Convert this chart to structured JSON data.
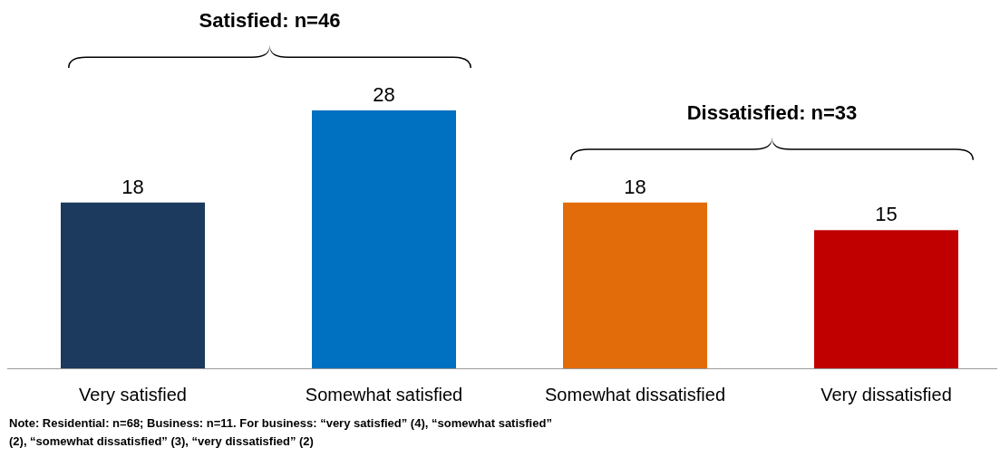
{
  "chart_data": {
    "type": "bar",
    "categories": [
      "Very satisfied",
      "Somewhat satisfied",
      "Somewhat dissatisfied",
      "Very dissatisfied"
    ],
    "values": [
      18,
      28,
      18,
      15
    ],
    "colors": [
      "#1b3a5e",
      "#0070c0",
      "#e36c0a",
      "#c00000"
    ],
    "data_labels": true,
    "annotations": [
      "Satisfied: n=46",
      "Dissatisfied: n=33",
      "Note: Residential: n=68; Business: n=11. For business: “very satisfied” (4), “somewhat satisfied” (2), “somewhat dissatisfied” (3), “very dissatisfied” (2)"
    ]
  }
}
